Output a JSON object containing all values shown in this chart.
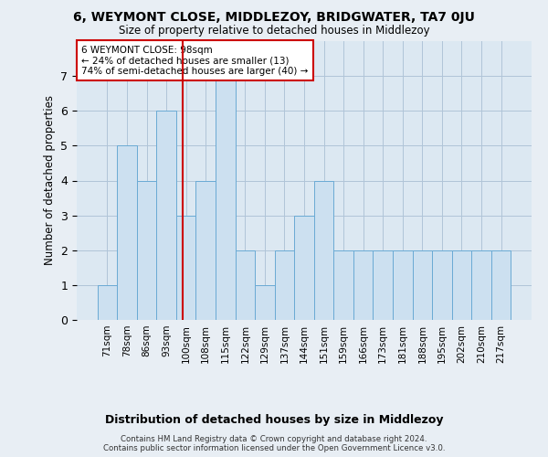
{
  "title": "6, WEYMONT CLOSE, MIDDLEZOY, BRIDGWATER, TA7 0JU",
  "subtitle": "Size of property relative to detached houses in Middlezoy",
  "xlabel": "Distribution of detached houses by size in Middlezoy",
  "ylabel": "Number of detached properties",
  "bin_labels": [
    "71sqm",
    "78sqm",
    "86sqm",
    "93sqm",
    "100sqm",
    "108sqm",
    "115sqm",
    "122sqm",
    "129sqm",
    "137sqm",
    "144sqm",
    "151sqm",
    "159sqm",
    "166sqm",
    "173sqm",
    "181sqm",
    "188sqm",
    "195sqm",
    "202sqm",
    "210sqm",
    "217sqm"
  ],
  "bar_heights": [
    1,
    5,
    4,
    6,
    3,
    4,
    7,
    2,
    1,
    2,
    3,
    4,
    2,
    2,
    2,
    2,
    2,
    2,
    2,
    2,
    2
  ],
  "bar_color": "#cce0f0",
  "bar_edge_color": "#6aaad4",
  "vline_x": 3.85,
  "vline_color": "#cc0000",
  "annotation_text": "6 WEYMONT CLOSE: 98sqm\n← 24% of detached houses are smaller (13)\n74% of semi-detached houses are larger (40) →",
  "annotation_box_color": "#ffffff",
  "annotation_box_edge_color": "#cc0000",
  "ylim": [
    0,
    8
  ],
  "yticks": [
    0,
    1,
    2,
    3,
    4,
    5,
    6,
    7
  ],
  "footer": "Contains HM Land Registry data © Crown copyright and database right 2024.\nContains public sector information licensed under the Open Government Licence v3.0.",
  "bg_color": "#e8eef4",
  "plot_bg_color": "#dce8f2"
}
